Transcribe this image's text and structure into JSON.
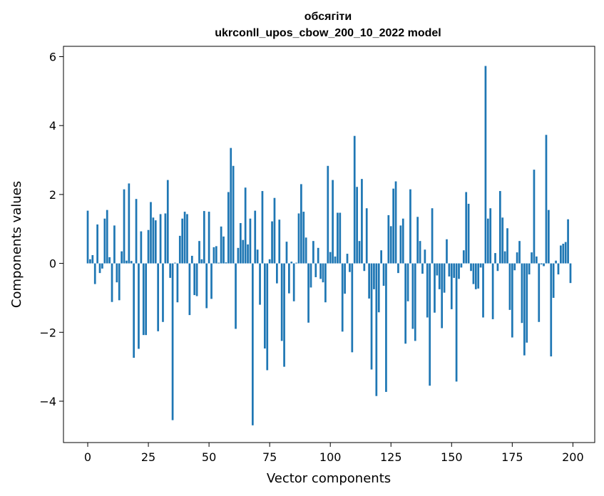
{
  "chart_data": {
    "type": "bar",
    "title": [
      "обсягіти",
      "ukrconll_upos_cbow_200_10_2022 model"
    ],
    "xlabel": "Vector components",
    "ylabel": "Components values",
    "xlim": [
      -10,
      209
    ],
    "ylim": [
      -5.2,
      6.3
    ],
    "xticks": [
      0,
      25,
      50,
      75,
      100,
      125,
      150,
      175,
      200
    ],
    "yticks": [
      -4,
      -2,
      0,
      2,
      4,
      6
    ],
    "ytick_labels": [
      "−4",
      "−2",
      "0",
      "2",
      "4",
      "6"
    ],
    "grid": false,
    "bar_color": "#1f77b4",
    "values": [
      1.53,
      0.12,
      0.24,
      -0.6,
      1.13,
      -0.28,
      -0.15,
      1.3,
      1.55,
      0.18,
      -1.12,
      1.1,
      -0.55,
      -1.07,
      0.35,
      2.15,
      0.08,
      2.32,
      0.07,
      -2.74,
      1.87,
      -2.48,
      0.93,
      -2.08,
      -2.08,
      0.97,
      1.78,
      1.33,
      1.25,
      -1.97,
      1.43,
      -1.7,
      1.45,
      2.42,
      -0.42,
      -4.55,
      0.02,
      -1.13,
      0.8,
      1.3,
      1.5,
      1.43,
      -1.5,
      0.22,
      -0.92,
      -0.95,
      0.65,
      0.12,
      1.52,
      -1.3,
      1.5,
      -1.03,
      0.47,
      0.5,
      0.02,
      1.07,
      0.78,
      0.03,
      2.07,
      3.35,
      2.83,
      -1.9,
      0.45,
      1.17,
      0.68,
      2.2,
      0.55,
      1.3,
      -4.7,
      1.53,
      0.4,
      -1.2,
      2.1,
      -2.47,
      -3.1,
      0.12,
      1.22,
      1.9,
      -0.58,
      1.27,
      -2.25,
      -3.0,
      0.63,
      -0.87,
      0.05,
      -1.1,
      0.02,
      1.45,
      2.3,
      1.5,
      0.75,
      -1.72,
      -0.7,
      0.65,
      -0.4,
      0.45,
      -0.45,
      -0.55,
      -1.13,
      2.83,
      0.33,
      2.42,
      0.2,
      1.47,
      1.47,
      -1.98,
      -0.88,
      0.28,
      -0.25,
      -2.58,
      3.7,
      2.22,
      0.65,
      2.45,
      -0.22,
      1.6,
      -1.02,
      -3.08,
      -0.75,
      -3.85,
      -1.42,
      0.38,
      -0.65,
      -3.73,
      1.4,
      1.08,
      2.17,
      2.38,
      -0.28,
      1.1,
      1.3,
      -2.33,
      -1.1,
      2.15,
      -1.9,
      -2.25,
      1.35,
      0.65,
      -0.3,
      0.4,
      -1.57,
      -3.55,
      1.6,
      -1.43,
      -0.35,
      -0.75,
      -1.88,
      -0.85,
      0.7,
      -0.38,
      -1.33,
      -0.42,
      -3.43,
      -0.45,
      -0.12,
      0.38,
      2.07,
      1.73,
      -0.22,
      -0.6,
      -0.75,
      -0.73,
      -0.12,
      -1.57,
      5.73,
      1.3,
      1.6,
      -1.62,
      0.3,
      -0.22,
      2.1,
      1.33,
      0.35,
      1.02,
      -1.35,
      -2.15,
      -0.2,
      0.32,
      0.65,
      -1.73,
      -2.67,
      -2.3,
      -0.32,
      0.32,
      2.72,
      0.2,
      -1.7,
      -0.03,
      -0.08,
      3.73,
      1.55,
      -2.7,
      -1.0,
      0.08,
      -0.32,
      0.52,
      0.57,
      0.62,
      1.28,
      -0.57
    ]
  }
}
